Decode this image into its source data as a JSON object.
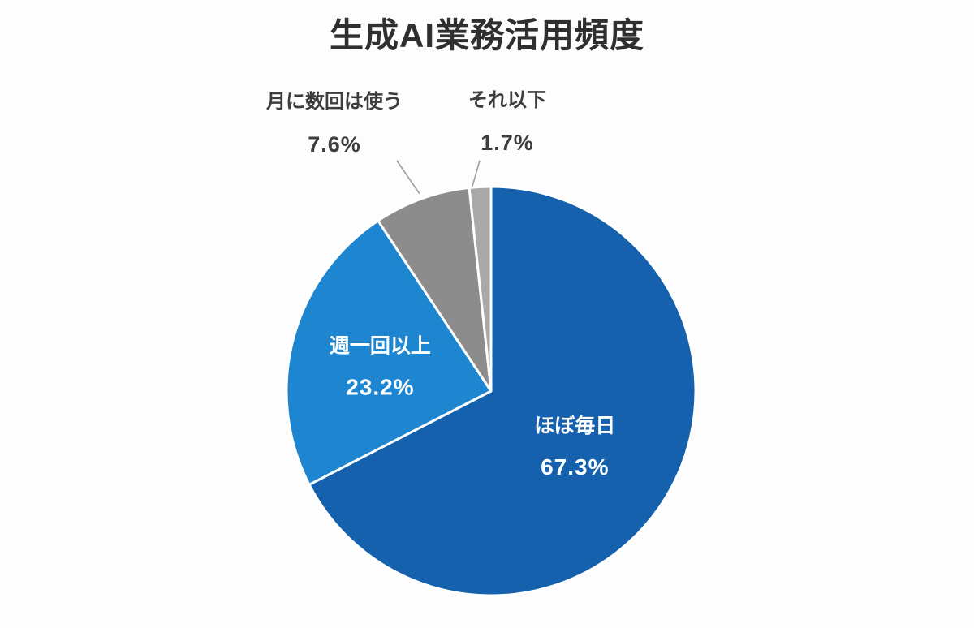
{
  "title": "生成AI業務活用頻度",
  "chart_data": {
    "type": "pie",
    "title": "生成AI業務活用頻度",
    "legend": "none",
    "start_angle_deg": 0,
    "direction": "clockwise",
    "slices": [
      {
        "label": "ほぼ毎日",
        "value": 67.3,
        "percent_label": "67.3%",
        "color": "#1561ad",
        "label_placement": "inside",
        "label_color": "#ffffff"
      },
      {
        "label": "週一回以上",
        "value": 23.2,
        "percent_label": "23.2%",
        "color": "#1e86d1",
        "label_placement": "inside",
        "label_color": "#ffffff"
      },
      {
        "label": "月に数回は使う",
        "value": 7.6,
        "percent_label": "7.6%",
        "color": "#8c8c8c",
        "label_placement": "outside",
        "label_color": "#3d3d3d"
      },
      {
        "label": "それ以下",
        "value": 1.7,
        "percent_label": "1.7%",
        "color": "#a9a9a9",
        "label_placement": "outside",
        "label_color": "#3d3d3d"
      }
    ],
    "colors": {
      "background": "#fdfdfd",
      "title_text": "#2f2f2f",
      "leader_line": "#9e9e9e",
      "slice_border": "#ffffff"
    }
  }
}
